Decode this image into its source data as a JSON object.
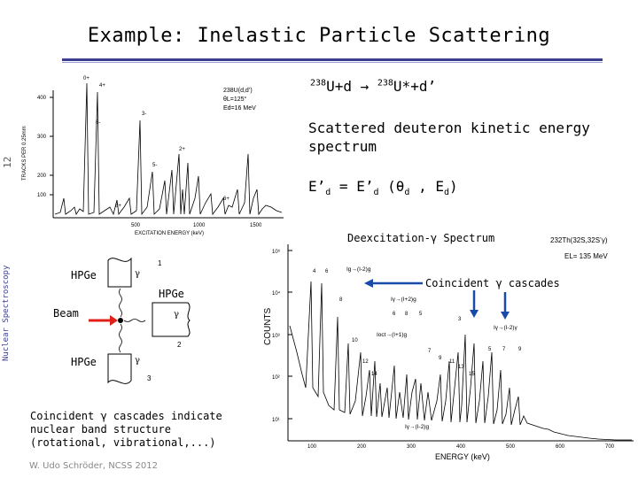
{
  "slide": {
    "title": "Example: Inelastic Particle Scattering",
    "slide_number": "12",
    "section_label": "Nuclear Spectroscopy",
    "footer": "W. Udo Schröder, NCSS 2012"
  },
  "right_column": {
    "reaction_pre": "238",
    "reaction_mid": "U+d → ",
    "reaction_pre2": "238",
    "reaction_post": "U*+d’",
    "scatter_text": "Scattered deuteron kinetic energy spectrum",
    "eq_lhs": "E’",
    "eq_lhs_sub": "d",
    "eq_mid": " = E’",
    "eq_mid_sub": "d",
    "eq_args_open": " (θ",
    "eq_args_sub1": "d",
    "eq_args_comma": " , E",
    "eq_args_sub2": "d",
    "eq_args_close": ")",
    "deexcitation_label": "Deexcitation-γ Spectrum",
    "coincident_label": "Coincident γ cascades"
  },
  "detector_diagram": {
    "hpge_top": "HPGe",
    "hpge_right": "HPGe",
    "beam": "Beam",
    "hpge_bottom": "HPGe",
    "gamma": "γ",
    "label_1": "1",
    "label_2": "2",
    "label_3": "3"
  },
  "bottom_left_text": "Coincident γ cascades indicate nuclear band structure (rotational, vibrational,...)",
  "deuteron_spectrum": {
    "ylabel": "TRACKS PER 0.25mm",
    "xlabel": "EXCITATION ENERGY (keV)",
    "reaction": "238U(d,d’)",
    "angle": "θL=125°",
    "energy": "Ed=16 MeV",
    "y_ticks": [
      "400",
      "300",
      "200",
      "100"
    ],
    "x_ticks": [
      "500",
      "1000",
      "1500"
    ],
    "peak_labels": [
      "0+",
      "4+",
      "3-",
      "6-",
      "2+",
      "5-",
      "8+",
      "6+"
    ]
  },
  "gamma_spectrum": {
    "ylabel": "COUNTS",
    "xlabel": "ENERGY (keV)",
    "reaction": "232Th(32S,32S’γ)",
    "beam_energy": "EL= 135 MeV",
    "y_ticks": [
      "10⁵",
      "10⁴",
      "10³",
      "10²",
      "10¹"
    ],
    "x_ticks": [
      "100",
      "200",
      "300",
      "400",
      "500",
      "600",
      "700"
    ],
    "band_labels": [
      "Ig→(I-2)g",
      "Iγ→(I+2)g",
      "Iγ→(I-2)γ",
      "Ioct→(I+1)g",
      "Iγ→(I-2)g"
    ],
    "peak_numbers": [
      "4",
      "6",
      "8",
      "10",
      "12",
      "14",
      "6",
      "8",
      "5",
      "7",
      "9",
      "11",
      "13",
      "15",
      "3",
      "5",
      "7",
      "9"
    ]
  },
  "colors": {
    "accent": "#3c3f8f",
    "arrow_red": "#e0201a",
    "arrow_blue": "#1a4aa8"
  }
}
